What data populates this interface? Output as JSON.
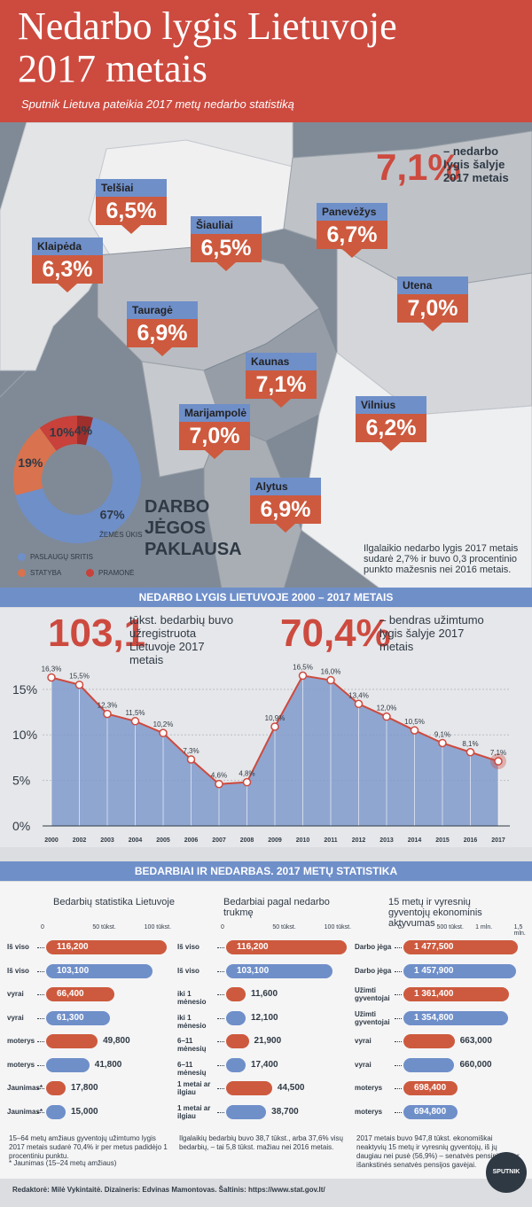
{
  "header": {
    "title_line1": "Nedarbo lygis Lietuvoje",
    "title_line2": "2017 metais",
    "subtitle": "Sputnik Lietuva pateikia 2017 metų nedarbo statistiką"
  },
  "map": {
    "national_value": "7,1%",
    "national_text": "– nedarbo lygis šalyje 2017 metais",
    "regions": [
      {
        "name": "Telšiai",
        "value": "6,5%"
      },
      {
        "name": "Šiauliai",
        "value": "6,5%"
      },
      {
        "name": "Panevėžys",
        "value": "6,7%"
      },
      {
        "name": "Klaipėda",
        "value": "6,3%"
      },
      {
        "name": "Utena",
        "value": "7,0%"
      },
      {
        "name": "Tauragė",
        "value": "6,9%"
      },
      {
        "name": "Kaunas",
        "value": "7,1%"
      },
      {
        "name": "Vilnius",
        "value": "6,2%"
      },
      {
        "name": "Marijampolė",
        "value": "7,0%"
      },
      {
        "name": "Alytus",
        "value": "6,9%"
      }
    ],
    "long_term_note": "Ilgalaikio nedarbo lygis 2017 metais sudarė 2,7% ir buvo 0,3 procentinio punkto mažesnis nei 2016 metais."
  },
  "donut": {
    "title": "DARBO JĖGOS PAKLAUSA",
    "segments": [
      {
        "label": "PASLAUGŲ SRITIS",
        "value": 67,
        "text": "67%",
        "color": "#6f8fc9"
      },
      {
        "label": "STATYBA",
        "value": 19,
        "text": "19%",
        "color": "#d9724e"
      },
      {
        "label": "PRAMONĖ",
        "value": 10,
        "text": "10%",
        "color": "#c8413a"
      },
      {
        "label": "ŽEMĖS ŪKIS",
        "value": 4,
        "text": "4%",
        "color": "#9e2f2c"
      }
    ]
  },
  "section2": {
    "band": "NEDARBO LYGIS LIETUVOJE 2000 – 2017 METAIS",
    "stat1_value": "103,1",
    "stat1_text": "tūkst. bedarbių buvo užregistruota Lietuvoje 2017 metais",
    "stat2_value": "70,4%",
    "stat2_text": "– bendras užimtumo lygis šalyje 2017 metais"
  },
  "chart_data": {
    "type": "area",
    "x": [
      "2000",
      "2002",
      "2003",
      "2004",
      "2005",
      "2006",
      "2007",
      "2008",
      "2009",
      "2010",
      "2011",
      "2012",
      "2013",
      "2014",
      "2015",
      "2016",
      "2017"
    ],
    "y": [
      16.3,
      15.5,
      12.3,
      11.5,
      10.2,
      7.3,
      4.6,
      4.8,
      10.9,
      16.5,
      16.0,
      13.4,
      12.0,
      10.5,
      9.1,
      8.1,
      7.1
    ],
    "labels": [
      "16,3%",
      "15,5%",
      "12,3%",
      "11,5%",
      "10,2%",
      "7,3%",
      "4,6%",
      "4,8%",
      "10,9%",
      "16,5%",
      "16,0%",
      "13,4%",
      "12,0%",
      "10,5%",
      "9,1%",
      "8,1%",
      "7,1%"
    ],
    "y_ticks": [
      "0%",
      "5%",
      "10%",
      "15%"
    ],
    "ylim": [
      0,
      18
    ]
  },
  "section3": {
    "band": "BEDARBIAI IR NEDARBAS. 2017 METŲ STATISTIKA",
    "col1": {
      "title": "Bedarbių statistika Lietuvoje",
      "scale": [
        "0",
        "50 tūkst.",
        "100 tūkst."
      ],
      "rows": [
        {
          "label": "Iš viso",
          "value": "116,200",
          "v": 116.2,
          "c": "o"
        },
        {
          "label": "Iš viso",
          "value": "103,100",
          "v": 103.1,
          "c": "b"
        },
        {
          "label": "vyrai",
          "value": "66,400",
          "v": 66.4,
          "c": "o"
        },
        {
          "label": "vyrai",
          "value": "61,300",
          "v": 61.3,
          "c": "b"
        },
        {
          "label": "moterys",
          "value": "49,800",
          "v": 49.8,
          "c": "o"
        },
        {
          "label": "moterys",
          "value": "41,800",
          "v": 41.8,
          "c": "b"
        },
        {
          "label": "Jaunimas*",
          "value": "17,800",
          "v": 17.8,
          "c": "o"
        },
        {
          "label": "Jaunimas*",
          "value": "15,000",
          "v": 15.0,
          "c": "b"
        }
      ],
      "note": "15–64 metų amžiaus gyventojų užimtumo lygis 2017 metais sudarė 70,4% ir per metus padidėjo 1 procentiniu punktu.",
      "footnote": "* Jaunimas (15–24 metų amžiaus)"
    },
    "col2": {
      "title": "Bedarbiai pagal nedarbo trukmę",
      "scale": [
        "0",
        "50 tūkst.",
        "100 tūkst."
      ],
      "rows": [
        {
          "label": "Iš viso",
          "value": "116,200",
          "v": 116.2,
          "c": "o"
        },
        {
          "label": "Iš viso",
          "value": "103,100",
          "v": 103.1,
          "c": "b"
        },
        {
          "label": "iki 1 mėnesio",
          "value": "11,600",
          "v": 11.6,
          "c": "o"
        },
        {
          "label": "iki 1 mėnesio",
          "value": "12,100",
          "v": 12.1,
          "c": "b"
        },
        {
          "label": "6–11 mėnesių",
          "value": "21,900",
          "v": 21.9,
          "c": "o"
        },
        {
          "label": "6–11 mėnesių",
          "value": "17,400",
          "v": 17.4,
          "c": "b"
        },
        {
          "label": "1 metai ar ilgiau",
          "value": "44,500",
          "v": 44.5,
          "c": "o"
        },
        {
          "label": "1 metai ar ilgiau",
          "value": "38,700",
          "v": 38.7,
          "c": "b"
        }
      ],
      "note": "Ilgalaikių bedarbių buvo 38,7 tūkst., arba 37,6% visų bedarbių, – tai 5,8 tūkst. mažiau nei 2016 metais."
    },
    "col3": {
      "title": "15 metų ir vyresnių gyventojų ekonominis aktyvumas",
      "scale": [
        "0",
        "500 tūkst.",
        "1 mln.",
        "1,5 mln."
      ],
      "rows": [
        {
          "label": "Darbo jėga",
          "value": "1 477,500",
          "v": 1477.5,
          "c": "o"
        },
        {
          "label": "Darbo jėga",
          "value": "1 457,900",
          "v": 1457.9,
          "c": "b"
        },
        {
          "label": "Užimti gyventojai",
          "value": "1 361,400",
          "v": 1361.4,
          "c": "o"
        },
        {
          "label": "Užimti gyventojai",
          "value": "1 354,800",
          "v": 1354.8,
          "c": "b"
        },
        {
          "label": "vyrai",
          "value": "663,000",
          "v": 663.0,
          "c": "o"
        },
        {
          "label": "vyrai",
          "value": "660,000",
          "v": 660.0,
          "c": "b"
        },
        {
          "label": "moterys",
          "value": "698,400",
          "v": 698.4,
          "c": "o"
        },
        {
          "label": "moterys",
          "value": "694,800",
          "v": 694.8,
          "c": "b"
        }
      ],
      "note": "2017 metais buvo 947,8 tūkst. ekonomiškai neaktyvių 15 metų ir vyresnių gyventojų, iš jų daugiau nei pusė (56,9%) – senatvės pensininkai ar išankstinės senatvės pensijos gavėjai."
    }
  },
  "footer": {
    "credits": "Redaktorė: Milė Vykintaitė.   Dizaineris: Edvinas Mamontovas.   Šaltinis: https://www.stat.gov.lt/",
    "logo": "SPUTNIK"
  }
}
